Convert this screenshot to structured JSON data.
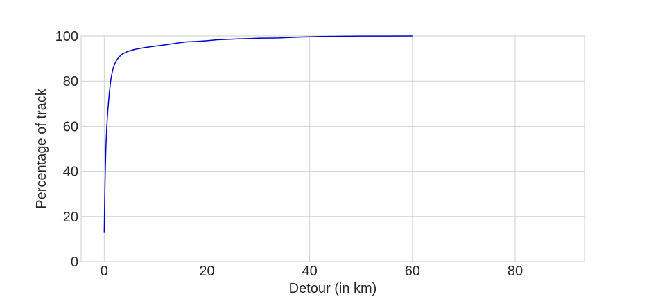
{
  "chart_data": {
    "type": "line",
    "title": "",
    "xlabel": "Detour (in km)",
    "ylabel": "Percentage of track",
    "xlim": [
      -4.5,
      93.5
    ],
    "ylim": [
      0,
      100
    ],
    "xticks": [
      0,
      20,
      40,
      60,
      80
    ],
    "yticks": [
      0,
      20,
      40,
      60,
      80,
      100
    ],
    "grid": true,
    "line_color": "#0000cc",
    "series": [
      {
        "x": [
          0,
          0.1,
          0.2,
          0.35,
          0.5,
          0.7,
          1.0,
          1.3,
          1.7,
          2.2,
          2.8,
          3.5,
          4.5,
          6,
          8,
          10,
          12,
          14,
          16,
          18,
          20,
          22,
          24,
          26,
          28,
          30,
          32,
          34,
          36,
          38,
          40,
          42,
          45,
          50,
          55,
          60
        ],
        "y": [
          13,
          28,
          40,
          52,
          60,
          67,
          75,
          81,
          85.5,
          88.5,
          90.5,
          92,
          93.1,
          94.1,
          94.9,
          95.5,
          96.1,
          96.8,
          97.4,
          97.6,
          97.9,
          98.3,
          98.5,
          98.7,
          98.8,
          99.0,
          99.05,
          99.1,
          99.3,
          99.5,
          99.6,
          99.75,
          99.85,
          99.95,
          99.98,
          100
        ]
      }
    ]
  }
}
